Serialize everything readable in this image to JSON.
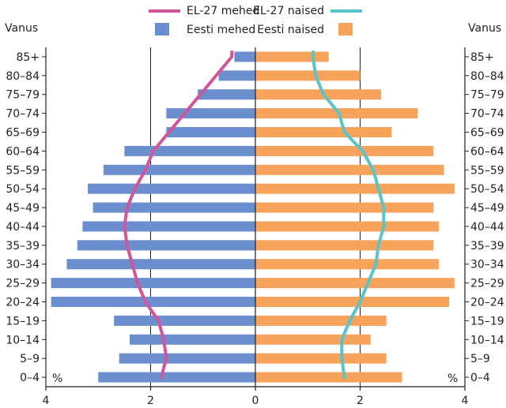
{
  "chart_data": {
    "type": "bar",
    "orientation": "horizontal-pyramid",
    "age_axis_label_left": "Vanus",
    "age_axis_label_right": "Vanus",
    "unit_left": "%",
    "unit_right": "%",
    "categories": [
      "0–4",
      "5–9",
      "10–14",
      "15–19",
      "20–24",
      "25–29",
      "30–34",
      "35–39",
      "40–44",
      "45–49",
      "50–54",
      "55–59",
      "60–64",
      "65–69",
      "70–74",
      "75–79",
      "80–84",
      "85+"
    ],
    "x_ticks": [
      "4",
      "2",
      "0",
      "2",
      "4"
    ],
    "xlim": [
      -4,
      4
    ],
    "series": [
      {
        "name": "Eesti mehed",
        "type": "bar",
        "side": "left",
        "color": "#6b8fce",
        "values": [
          3.0,
          2.6,
          2.4,
          2.7,
          3.9,
          3.9,
          3.6,
          3.4,
          3.3,
          3.1,
          3.2,
          2.9,
          2.5,
          1.7,
          1.7,
          1.1,
          0.7,
          0.4
        ]
      },
      {
        "name": "Eesti naised",
        "type": "bar",
        "side": "right",
        "color": "#f7a35c",
        "values": [
          2.8,
          2.5,
          2.2,
          2.5,
          3.7,
          3.8,
          3.5,
          3.4,
          3.5,
          3.4,
          3.8,
          3.6,
          3.4,
          2.6,
          3.1,
          2.4,
          2.0,
          1.4
        ]
      },
      {
        "name": "EL-27 mehed",
        "type": "line",
        "side": "left",
        "color": "#d2559b",
        "values": [
          1.8,
          1.7,
          1.75,
          1.85,
          2.1,
          2.25,
          2.35,
          2.45,
          2.5,
          2.45,
          2.3,
          2.1,
          1.95,
          1.65,
          1.35,
          1.05,
          0.75,
          0.45
        ]
      },
      {
        "name": "EL-27 naised",
        "type": "line",
        "side": "right",
        "color": "#5bc4c8",
        "values": [
          1.7,
          1.65,
          1.65,
          1.8,
          2.0,
          2.15,
          2.3,
          2.35,
          2.45,
          2.45,
          2.35,
          2.25,
          2.05,
          1.7,
          1.6,
          1.3,
          1.15,
          1.1
        ]
      }
    ],
    "legend": [
      {
        "label": "EL-27 mehed",
        "series": "EL-27 mehed",
        "kind": "line",
        "color": "#d2559b"
      },
      {
        "label": "EL-27 naised",
        "series": "EL-27 naised",
        "kind": "line",
        "color": "#5bc4c8"
      },
      {
        "label": "Eesti mehed",
        "series": "Eesti mehed",
        "kind": "box",
        "color": "#6b8fce"
      },
      {
        "label": "Eesti naised",
        "series": "Eesti naised",
        "kind": "box",
        "color": "#f7a35c"
      }
    ],
    "legend_position": "top-center",
    "grid": true
  }
}
